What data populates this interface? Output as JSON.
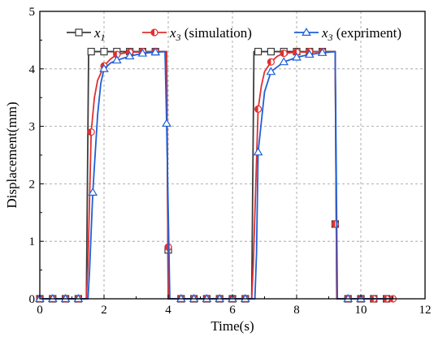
{
  "chart_data": {
    "type": "line",
    "xlabel": "Time(s)",
    "ylabel": "Displacement(mm)",
    "xlim": [
      0,
      12
    ],
    "ylim": [
      0,
      5
    ],
    "xticks": [
      0,
      2,
      4,
      6,
      8,
      10,
      12
    ],
    "yticks": [
      0,
      1,
      2,
      3,
      4,
      5
    ],
    "grid": true,
    "legend": {
      "placement": "top"
    },
    "series": [
      {
        "name": "x1",
        "name_main": "x",
        "name_sub": "1",
        "name_rest": "",
        "color": "#3c3c3c",
        "marker": "square",
        "line": [
          [
            0,
            0
          ],
          [
            1.45,
            0
          ],
          [
            1.52,
            4.3
          ],
          [
            3.95,
            4.3
          ],
          [
            4.0,
            0
          ],
          [
            6.6,
            0
          ],
          [
            6.67,
            4.3
          ],
          [
            9.2,
            4.3
          ],
          [
            9.25,
            0
          ],
          [
            10.9,
            0
          ]
        ],
        "markers": [
          [
            0,
            0
          ],
          [
            0.4,
            0
          ],
          [
            0.8,
            0
          ],
          [
            1.2,
            0
          ],
          [
            1.6,
            4.3
          ],
          [
            2.0,
            4.3
          ],
          [
            2.4,
            4.3
          ],
          [
            2.8,
            4.3
          ],
          [
            3.2,
            4.3
          ],
          [
            3.6,
            4.3
          ],
          [
            4.0,
            0.85
          ],
          [
            4.4,
            0
          ],
          [
            4.8,
            0
          ],
          [
            5.2,
            0
          ],
          [
            5.6,
            0
          ],
          [
            6.0,
            0
          ],
          [
            6.4,
            0
          ],
          [
            6.8,
            4.3
          ],
          [
            7.2,
            4.3
          ],
          [
            7.6,
            4.3
          ],
          [
            8.0,
            4.3
          ],
          [
            8.4,
            4.3
          ],
          [
            8.8,
            4.3
          ],
          [
            9.2,
            1.3
          ],
          [
            9.6,
            0
          ],
          [
            10.0,
            0
          ],
          [
            10.4,
            0
          ],
          [
            10.8,
            0
          ]
        ]
      },
      {
        "name": "x3 (simulation)",
        "name_main": "x",
        "name_sub": "3",
        "name_rest": " (simulation)",
        "color": "#e03030",
        "marker": "circle-half",
        "line": [
          [
            0,
            0
          ],
          [
            1.45,
            0
          ],
          [
            1.5,
            0.6
          ],
          [
            1.6,
            2.9
          ],
          [
            1.7,
            3.5
          ],
          [
            1.8,
            3.8
          ],
          [
            2.0,
            4.05
          ],
          [
            2.2,
            4.17
          ],
          [
            2.4,
            4.25
          ],
          [
            2.8,
            4.29
          ],
          [
            3.95,
            4.3
          ],
          [
            4.0,
            0
          ],
          [
            6.6,
            0
          ],
          [
            6.65,
            0.6
          ],
          [
            6.8,
            3.3
          ],
          [
            6.9,
            3.7
          ],
          [
            7.0,
            3.95
          ],
          [
            7.2,
            4.12
          ],
          [
            7.4,
            4.22
          ],
          [
            7.6,
            4.27
          ],
          [
            8.0,
            4.29
          ],
          [
            9.2,
            4.3
          ],
          [
            9.25,
            0
          ],
          [
            11.0,
            0
          ]
        ],
        "markers": [
          [
            0,
            0
          ],
          [
            0.4,
            0
          ],
          [
            0.8,
            0
          ],
          [
            1.2,
            0
          ],
          [
            1.6,
            2.9
          ],
          [
            2.0,
            4.05
          ],
          [
            2.4,
            4.25
          ],
          [
            2.8,
            4.29
          ],
          [
            3.2,
            4.3
          ],
          [
            3.6,
            4.3
          ],
          [
            4.0,
            0.9
          ],
          [
            4.4,
            0
          ],
          [
            4.8,
            0
          ],
          [
            5.2,
            0
          ],
          [
            5.6,
            0
          ],
          [
            6.0,
            0
          ],
          [
            6.4,
            0
          ],
          [
            6.8,
            3.3
          ],
          [
            7.2,
            4.12
          ],
          [
            7.6,
            4.27
          ],
          [
            8.0,
            4.29
          ],
          [
            8.4,
            4.3
          ],
          [
            8.8,
            4.3
          ],
          [
            9.2,
            1.3
          ],
          [
            9.6,
            0
          ],
          [
            10.0,
            0
          ],
          [
            10.4,
            0
          ],
          [
            10.8,
            0
          ],
          [
            11.0,
            0
          ]
        ]
      },
      {
        "name": "x3 (expriment)",
        "name_main": "x",
        "name_sub": "3",
        "name_rest": " (expriment)",
        "color": "#1f5fd8",
        "marker": "triangle",
        "line": [
          [
            0,
            0
          ],
          [
            1.5,
            0
          ],
          [
            1.55,
            0.5
          ],
          [
            1.65,
            1.85
          ],
          [
            1.8,
            3.2
          ],
          [
            1.9,
            3.75
          ],
          [
            2.0,
            4.0
          ],
          [
            2.2,
            4.1
          ],
          [
            2.4,
            4.15
          ],
          [
            2.8,
            4.22
          ],
          [
            3.2,
            4.27
          ],
          [
            3.6,
            4.29
          ],
          [
            3.9,
            4.3
          ],
          [
            3.95,
            3.05
          ],
          [
            4.05,
            0
          ],
          [
            6.7,
            0
          ],
          [
            6.75,
            0.8
          ],
          [
            6.8,
            2.55
          ],
          [
            7.0,
            3.6
          ],
          [
            7.2,
            3.95
          ],
          [
            7.6,
            4.12
          ],
          [
            8.0,
            4.2
          ],
          [
            8.4,
            4.25
          ],
          [
            8.8,
            4.28
          ],
          [
            9.2,
            4.3
          ],
          [
            9.27,
            0
          ],
          [
            11.0,
            0
          ]
        ],
        "markers": [
          [
            0,
            0
          ],
          [
            0.4,
            0
          ],
          [
            0.8,
            0
          ],
          [
            1.2,
            0
          ],
          [
            1.65,
            1.85
          ],
          [
            2.0,
            4.0
          ],
          [
            2.4,
            4.15
          ],
          [
            2.8,
            4.22
          ],
          [
            3.2,
            4.27
          ],
          [
            3.6,
            4.29
          ],
          [
            3.95,
            3.05
          ],
          [
            4.4,
            0
          ],
          [
            4.8,
            0
          ],
          [
            5.2,
            0
          ],
          [
            5.6,
            0
          ],
          [
            6.0,
            0
          ],
          [
            6.4,
            0
          ],
          [
            6.8,
            2.55
          ],
          [
            7.2,
            3.95
          ],
          [
            7.6,
            4.12
          ],
          [
            8.0,
            4.2
          ],
          [
            8.4,
            4.25
          ],
          [
            8.8,
            4.28
          ],
          [
            9.6,
            0
          ],
          [
            10.0,
            0
          ]
        ]
      }
    ]
  }
}
